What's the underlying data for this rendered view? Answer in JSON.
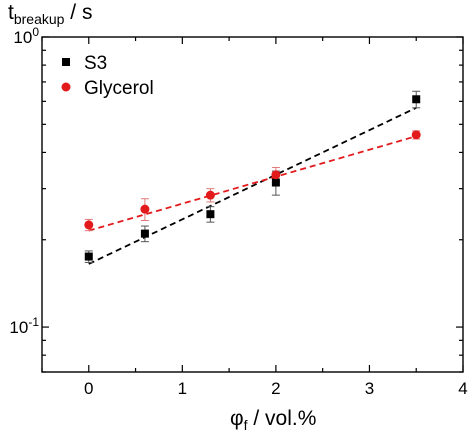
{
  "chart_data": {
    "type": "scatter",
    "title": "",
    "ylabel": {
      "main": "t",
      "sub": "breakup",
      "rest": " / s"
    },
    "xlabel": {
      "main": "φ",
      "sub": "f",
      "rest": " / vol.%"
    },
    "xlim": [
      -0.5,
      4
    ],
    "ylim": [
      0.07,
      1.0
    ],
    "yscale": "log",
    "grid": false,
    "legend_position": "top-left",
    "x_ticks": [
      {
        "value": 0,
        "label": "0"
      },
      {
        "value": 1,
        "label": "1"
      },
      {
        "value": 2,
        "label": "2"
      },
      {
        "value": 3,
        "label": "3"
      },
      {
        "value": 4,
        "label": "4"
      }
    ],
    "y_ticks": [
      {
        "value": 0.1,
        "base": "10",
        "exp": "-1"
      },
      {
        "value": 1.0,
        "base": "10",
        "exp": "0"
      }
    ],
    "series": [
      {
        "name": "S3",
        "marker": "square",
        "color": "#000000",
        "fit_color": "#000000",
        "x": [
          0,
          0.6,
          1.3,
          2.0,
          3.5
        ],
        "y": [
          0.175,
          0.21,
          0.245,
          0.315,
          0.61
        ],
        "err": [
          0.008,
          0.013,
          0.015,
          0.03,
          0.04
        ],
        "fit": {
          "x": [
            0,
            3.5
          ],
          "y": [
            0.165,
            0.57
          ]
        }
      },
      {
        "name": "Glycerol",
        "marker": "circle",
        "color": "#e31a1c",
        "fit_color": "#e31a1c",
        "x": [
          0,
          0.6,
          1.3,
          2.0,
          3.5
        ],
        "y": [
          0.225,
          0.255,
          0.285,
          0.335,
          0.46
        ],
        "err": [
          0.01,
          0.022,
          0.015,
          0.02,
          0.015
        ],
        "fit": {
          "x": [
            0,
            3.5
          ],
          "y": [
            0.215,
            0.455
          ]
        }
      }
    ]
  }
}
